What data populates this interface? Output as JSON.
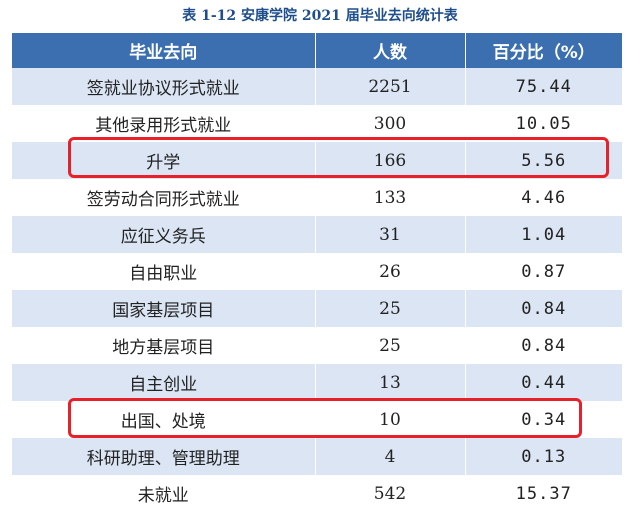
{
  "caption": "表 1-12 安康学院 2021 届毕业去向统计表",
  "table": {
    "headers": [
      "毕业去向",
      "人数",
      "百分比（%）"
    ],
    "rows": [
      {
        "destination": "签就业协议形式就业",
        "count": "2251",
        "percent": "75.44",
        "highlighted": false
      },
      {
        "destination": "其他录用形式就业",
        "count": "300",
        "percent": "10.05",
        "highlighted": false
      },
      {
        "destination": "升学",
        "count": "166",
        "percent": "5.56",
        "highlighted": true
      },
      {
        "destination": "签劳动合同形式就业",
        "count": "133",
        "percent": "4.46",
        "highlighted": false
      },
      {
        "destination": "应征义务兵",
        "count": "31",
        "percent": "1.04",
        "highlighted": false
      },
      {
        "destination": "自由职业",
        "count": "26",
        "percent": "0.87",
        "highlighted": false
      },
      {
        "destination": "国家基层项目",
        "count": "25",
        "percent": "0.84",
        "highlighted": false
      },
      {
        "destination": "地方基层项目",
        "count": "25",
        "percent": "0.84",
        "highlighted": false
      },
      {
        "destination": "自主创业",
        "count": "13",
        "percent": "0.44",
        "highlighted": false
      },
      {
        "destination": "出国、处境",
        "count": "10",
        "percent": "0.34",
        "highlighted": true
      },
      {
        "destination": "科研助理、管理助理",
        "count": "4",
        "percent": "0.13",
        "highlighted": false
      },
      {
        "destination": "未就业",
        "count": "542",
        "percent": "15.37",
        "highlighted": false
      }
    ]
  },
  "colors": {
    "header_bg": "#3b6fb0",
    "stripe_bg": "#dbe5f4",
    "caption_text": "#1f4e8c",
    "highlight_border": "#e8202a"
  }
}
